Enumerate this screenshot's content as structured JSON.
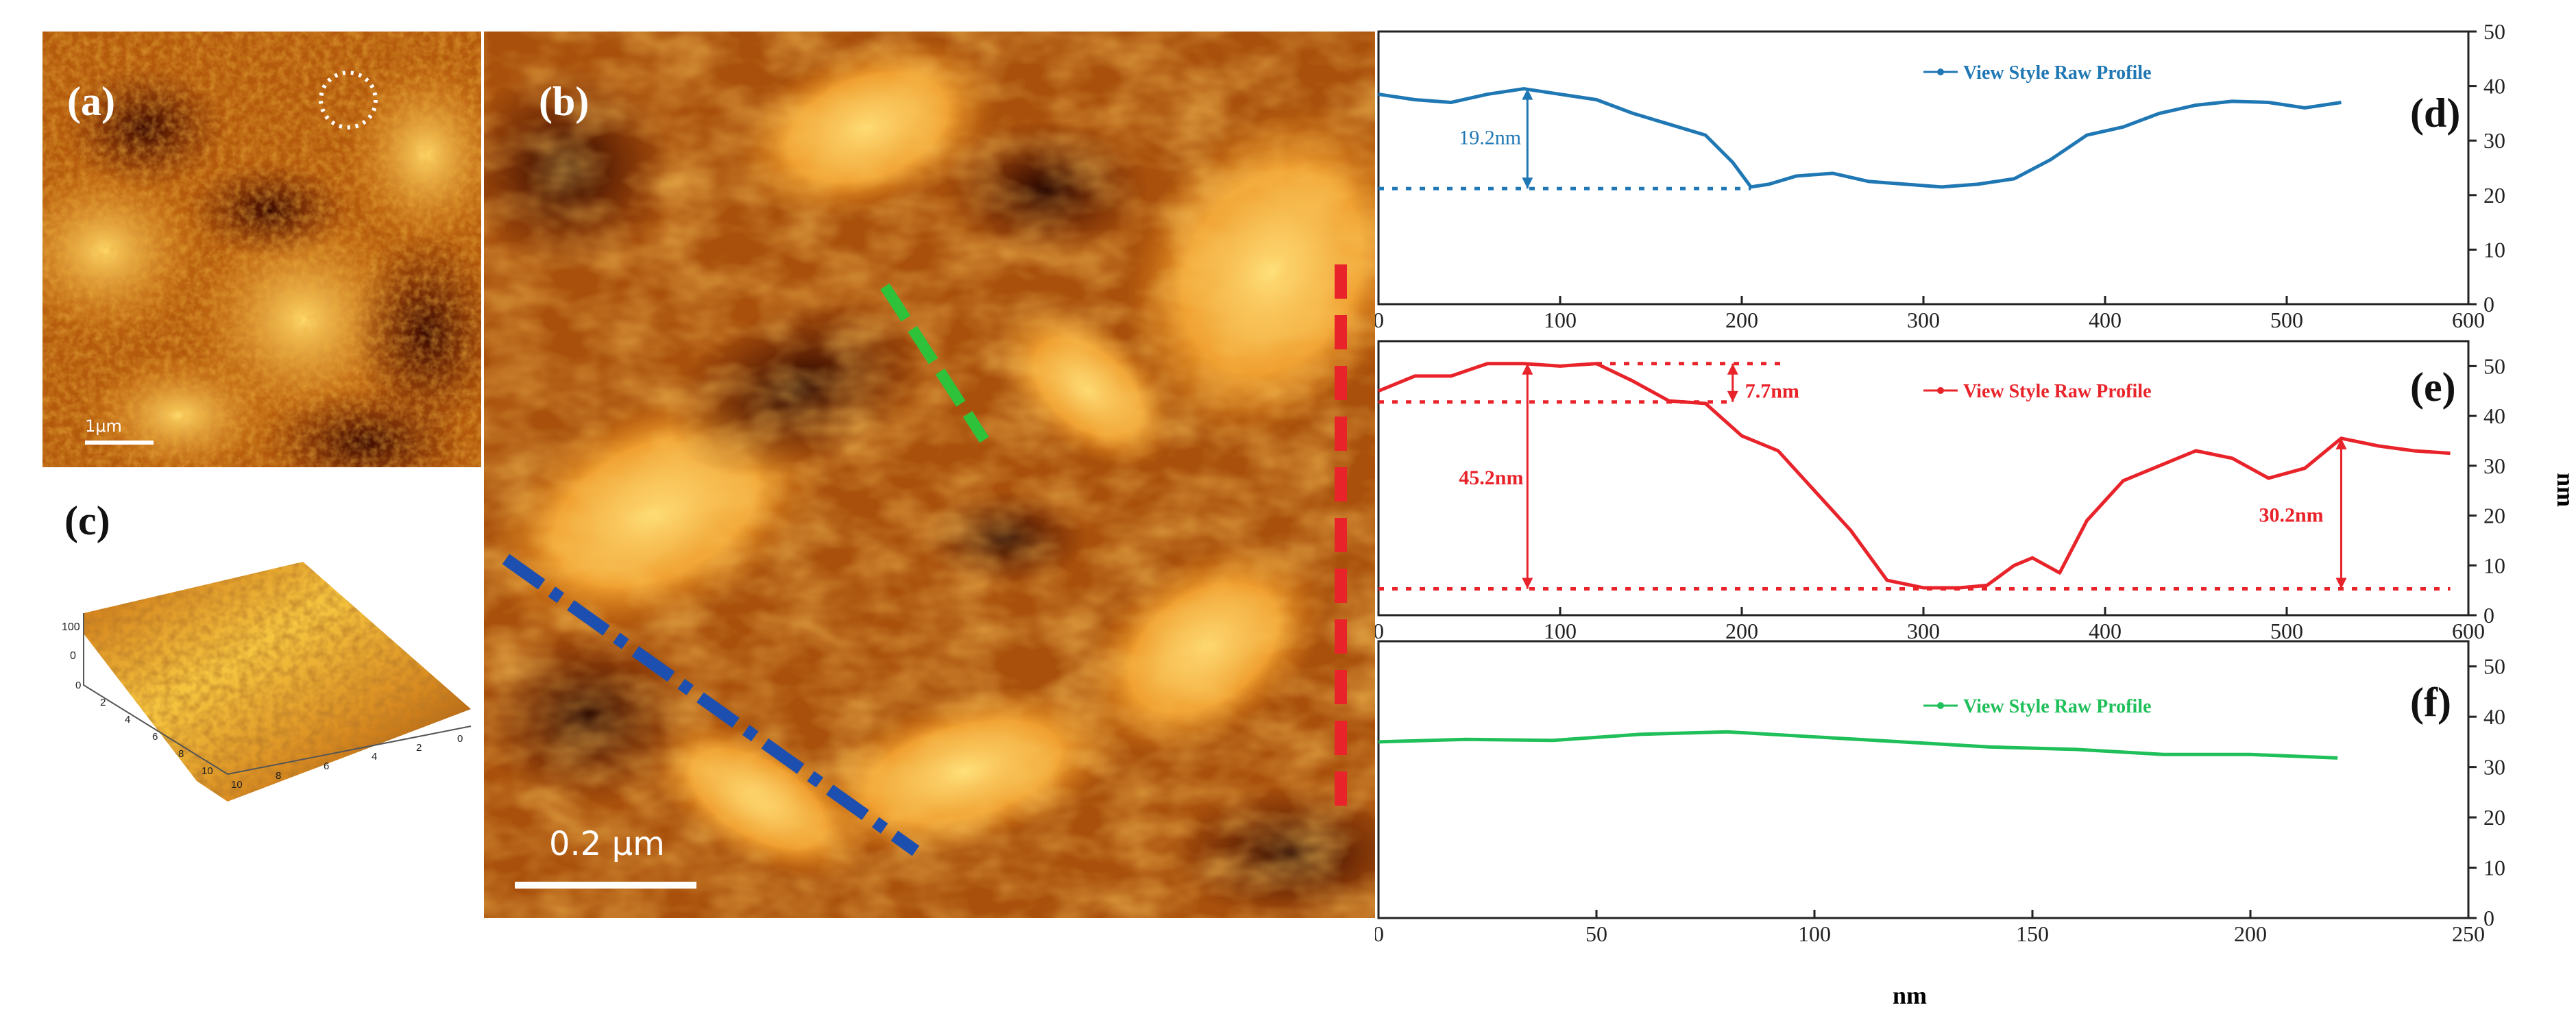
{
  "panels": {
    "a": {
      "label": "(a)",
      "scale_label": "1μm"
    },
    "b": {
      "label": "(b)",
      "scale_label": "0.2 μm"
    },
    "c": {
      "label": "(c)",
      "left_ticks": [
        "100",
        "0"
      ],
      "front_ticks": [
        "0",
        "2",
        "4",
        "6",
        "8",
        "10"
      ],
      "right_ticks": [
        "10",
        "8",
        "6",
        "4",
        "2",
        "0"
      ]
    }
  },
  "profile_axis_label_y": "nm",
  "profile_axis_label_x": "nm",
  "chart_data": [
    {
      "type": "line",
      "panel_label": "(d)",
      "legend": "View Style Raw Profile",
      "color": "#1f77b4",
      "xlim": [
        0,
        600
      ],
      "ylim": [
        0,
        50
      ],
      "x_ticks": [
        0,
        100,
        200,
        300,
        400,
        500,
        600
      ],
      "y_ticks": [
        0,
        10,
        20,
        30,
        40,
        50
      ],
      "x": [
        0,
        20,
        40,
        60,
        80,
        100,
        120,
        140,
        160,
        180,
        195,
        205,
        215,
        230,
        250,
        270,
        290,
        310,
        330,
        350,
        370,
        390,
        410,
        430,
        450,
        470,
        490,
        510,
        530
      ],
      "y": [
        38.5,
        37.5,
        37,
        38.5,
        39.5,
        38.5,
        37.5,
        35,
        33,
        31,
        26,
        21.5,
        22,
        23.5,
        24,
        22.5,
        22,
        21.5,
        22,
        23,
        26.5,
        31,
        32.5,
        35,
        36.5,
        37.2,
        37,
        36,
        37
      ],
      "annotation": {
        "text": "19.2nm",
        "x": 82,
        "y_top": 39.5,
        "y_bottom": 21.2
      }
    },
    {
      "type": "line",
      "panel_label": "(e)",
      "legend": "View Style Raw Profile",
      "color": "#e8232a",
      "xlim": [
        0,
        600
      ],
      "ylim": [
        0,
        55
      ],
      "x_ticks": [
        0,
        100,
        200,
        300,
        400,
        500,
        600
      ],
      "y_ticks": [
        0,
        10,
        20,
        30,
        40,
        50
      ],
      "x": [
        0,
        20,
        40,
        60,
        80,
        100,
        120,
        140,
        160,
        180,
        200,
        220,
        240,
        260,
        280,
        300,
        320,
        335,
        350,
        360,
        375,
        390,
        410,
        430,
        450,
        470,
        490,
        510,
        530,
        550,
        570,
        590
      ],
      "y": [
        45,
        48,
        48,
        50.5,
        50.5,
        50,
        50.5,
        47,
        43,
        42.5,
        36,
        33,
        25,
        17,
        7,
        5.5,
        5.5,
        6,
        10,
        11.5,
        8.5,
        19,
        27,
        30,
        33,
        31.5,
        27.5,
        29.5,
        35.5,
        34,
        33,
        32.5
      ],
      "annotations": [
        {
          "text": "7.7nm",
          "x": 195,
          "y_top": 50.5,
          "y_bottom": 42.8
        },
        {
          "text": "45.2nm",
          "x": 82,
          "y_top": 50.5,
          "y_bottom": 5.3
        },
        {
          "text": "30.2nm",
          "x": 530,
          "y_top": 35.5,
          "y_bottom": 5.3
        }
      ]
    },
    {
      "type": "line",
      "panel_label": "(f)",
      "legend": "View Style Raw Profile",
      "color": "#1fbf5a",
      "xlim": [
        0,
        250
      ],
      "ylim": [
        0,
        55
      ],
      "x_ticks": [
        0,
        50,
        100,
        150,
        200,
        250
      ],
      "y_ticks": [
        0,
        10,
        20,
        30,
        40,
        50
      ],
      "x": [
        0,
        20,
        40,
        60,
        80,
        100,
        120,
        140,
        160,
        180,
        200,
        220
      ],
      "y": [
        35,
        35.5,
        35.3,
        36.5,
        37,
        36,
        35,
        34,
        33.5,
        32.5,
        32.5,
        31.8
      ]
    }
  ]
}
